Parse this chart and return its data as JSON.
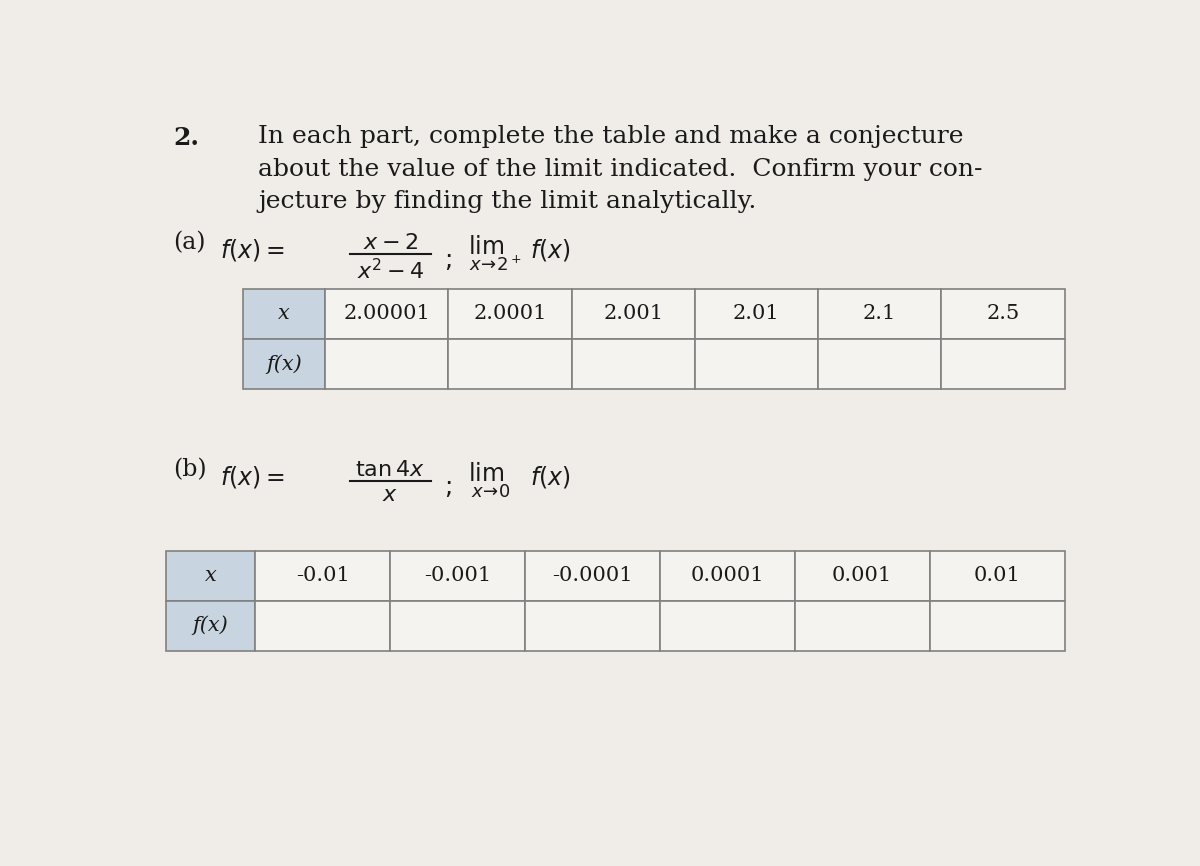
{
  "bg_color": "#f0ede8",
  "text_color": "#1a1a1a",
  "table_header_col_bg": "#c8d4e0",
  "table_data_bg": "#f5f3ef",
  "table_border_color": "#808080",
  "part_a_x_vals": [
    "2.00001",
    "2.0001",
    "2.001",
    "2.01",
    "2.1",
    "2.5"
  ],
  "part_b_x_vals": [
    "-0.01",
    "-0.001",
    "-0.0001",
    "0.0001",
    "0.001",
    "0.01"
  ],
  "intro_lines": [
    "In each part, complete the table and make a conjecture",
    "about the value of the limit indicated.  Confirm your con-",
    "jecture by finding the limit analytically."
  ]
}
